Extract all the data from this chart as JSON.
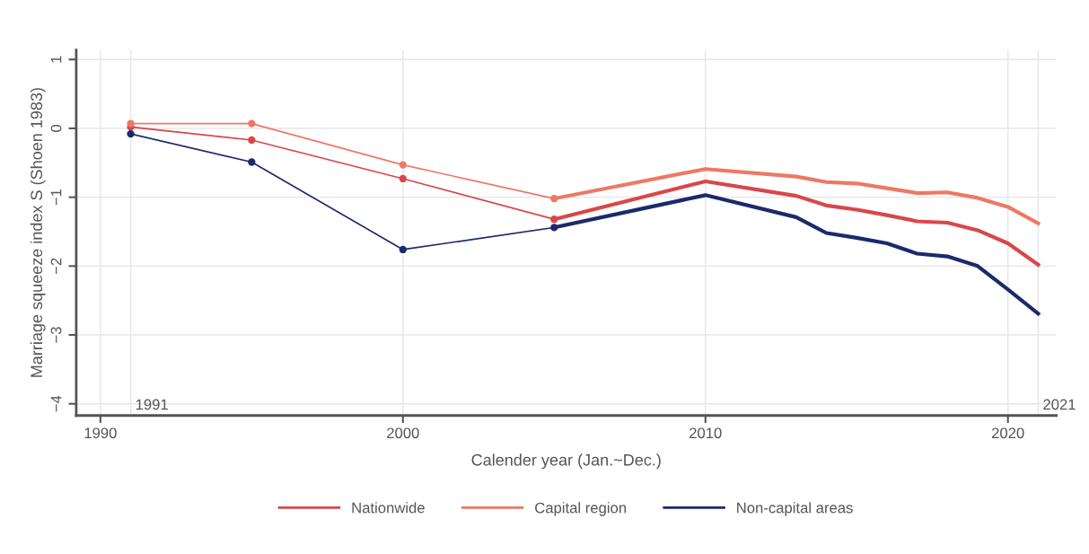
{
  "chart_data": {
    "type": "line",
    "xlabel": "Calender year (Jan.~Dec.)",
    "ylabel": "Marriage squeeze index S (Shoen 1983)",
    "xlim": [
      1989.2,
      2021.6
    ],
    "xticks": [
      1990,
      2000,
      2010,
      2020
    ],
    "ylim": [
      -4.17,
      1.14
    ],
    "yticks": [
      {
        "value": 1,
        "label": "1"
      },
      {
        "value": 0,
        "label": "0"
      },
      {
        "value": -1,
        "label": "−1"
      },
      {
        "value": -2,
        "label": "−2"
      },
      {
        "value": -3,
        "label": "−3"
      },
      {
        "value": -4,
        "label": "−4"
      }
    ],
    "grid": true,
    "legend": "bottom",
    "line_style": "solid",
    "ref_lines": [
      {
        "axis": "x",
        "value": 1991,
        "label": "1991",
        "color": "#e6e6e6"
      },
      {
        "axis": "x",
        "value": 2021,
        "label": "2021",
        "color": "#e6e6e6"
      }
    ],
    "series": [
      {
        "color": "#d9474a",
        "marker": "circle",
        "x": [
          1991,
          1995,
          2000,
          2005
        ],
        "values": [
          0.02,
          -0.17,
          -0.73,
          -1.32
        ]
      },
      {
        "color": "#ee7866",
        "marker": "circle",
        "x": [
          1991,
          1995,
          2000,
          2005
        ],
        "values": [
          0.07,
          0.07,
          -0.53,
          -1.02
        ]
      },
      {
        "color": "#1c2a6b",
        "marker": "circle",
        "x": [
          1991,
          1995,
          2000,
          2005
        ],
        "values": [
          -0.08,
          -0.49,
          -1.76,
          -1.44
        ]
      },
      {
        "name": "Nationwide",
        "color": "#d9474a",
        "marker": "none",
        "x": [
          2005,
          2010,
          2013,
          2014,
          2015,
          2016,
          2017,
          2018,
          2019,
          2020,
          2021
        ],
        "values": [
          -1.32,
          -0.77,
          -0.98,
          -1.12,
          -1.18,
          -1.26,
          -1.35,
          -1.37,
          -1.48,
          -1.67,
          -1.98
        ]
      },
      {
        "name": "Capital region",
        "color": "#ee7866",
        "marker": "none",
        "x": [
          2005,
          2010,
          2013,
          2014,
          2015,
          2016,
          2017,
          2018,
          2019,
          2020,
          2021
        ],
        "values": [
          -1.02,
          -0.59,
          -0.7,
          -0.78,
          -0.8,
          -0.87,
          -0.94,
          -0.93,
          -1.01,
          -1.14,
          -1.38
        ]
      },
      {
        "name": "Non-capital areas",
        "color": "#1c2a6b",
        "marker": "none",
        "x": [
          2005,
          2010,
          2013,
          2014,
          2015,
          2016,
          2017,
          2018,
          2019,
          2020,
          2021
        ],
        "values": [
          -1.44,
          -0.97,
          -1.29,
          -1.52,
          -1.59,
          -1.67,
          -1.82,
          -1.86,
          -2.0,
          -2.34,
          -2.69
        ]
      }
    ]
  }
}
